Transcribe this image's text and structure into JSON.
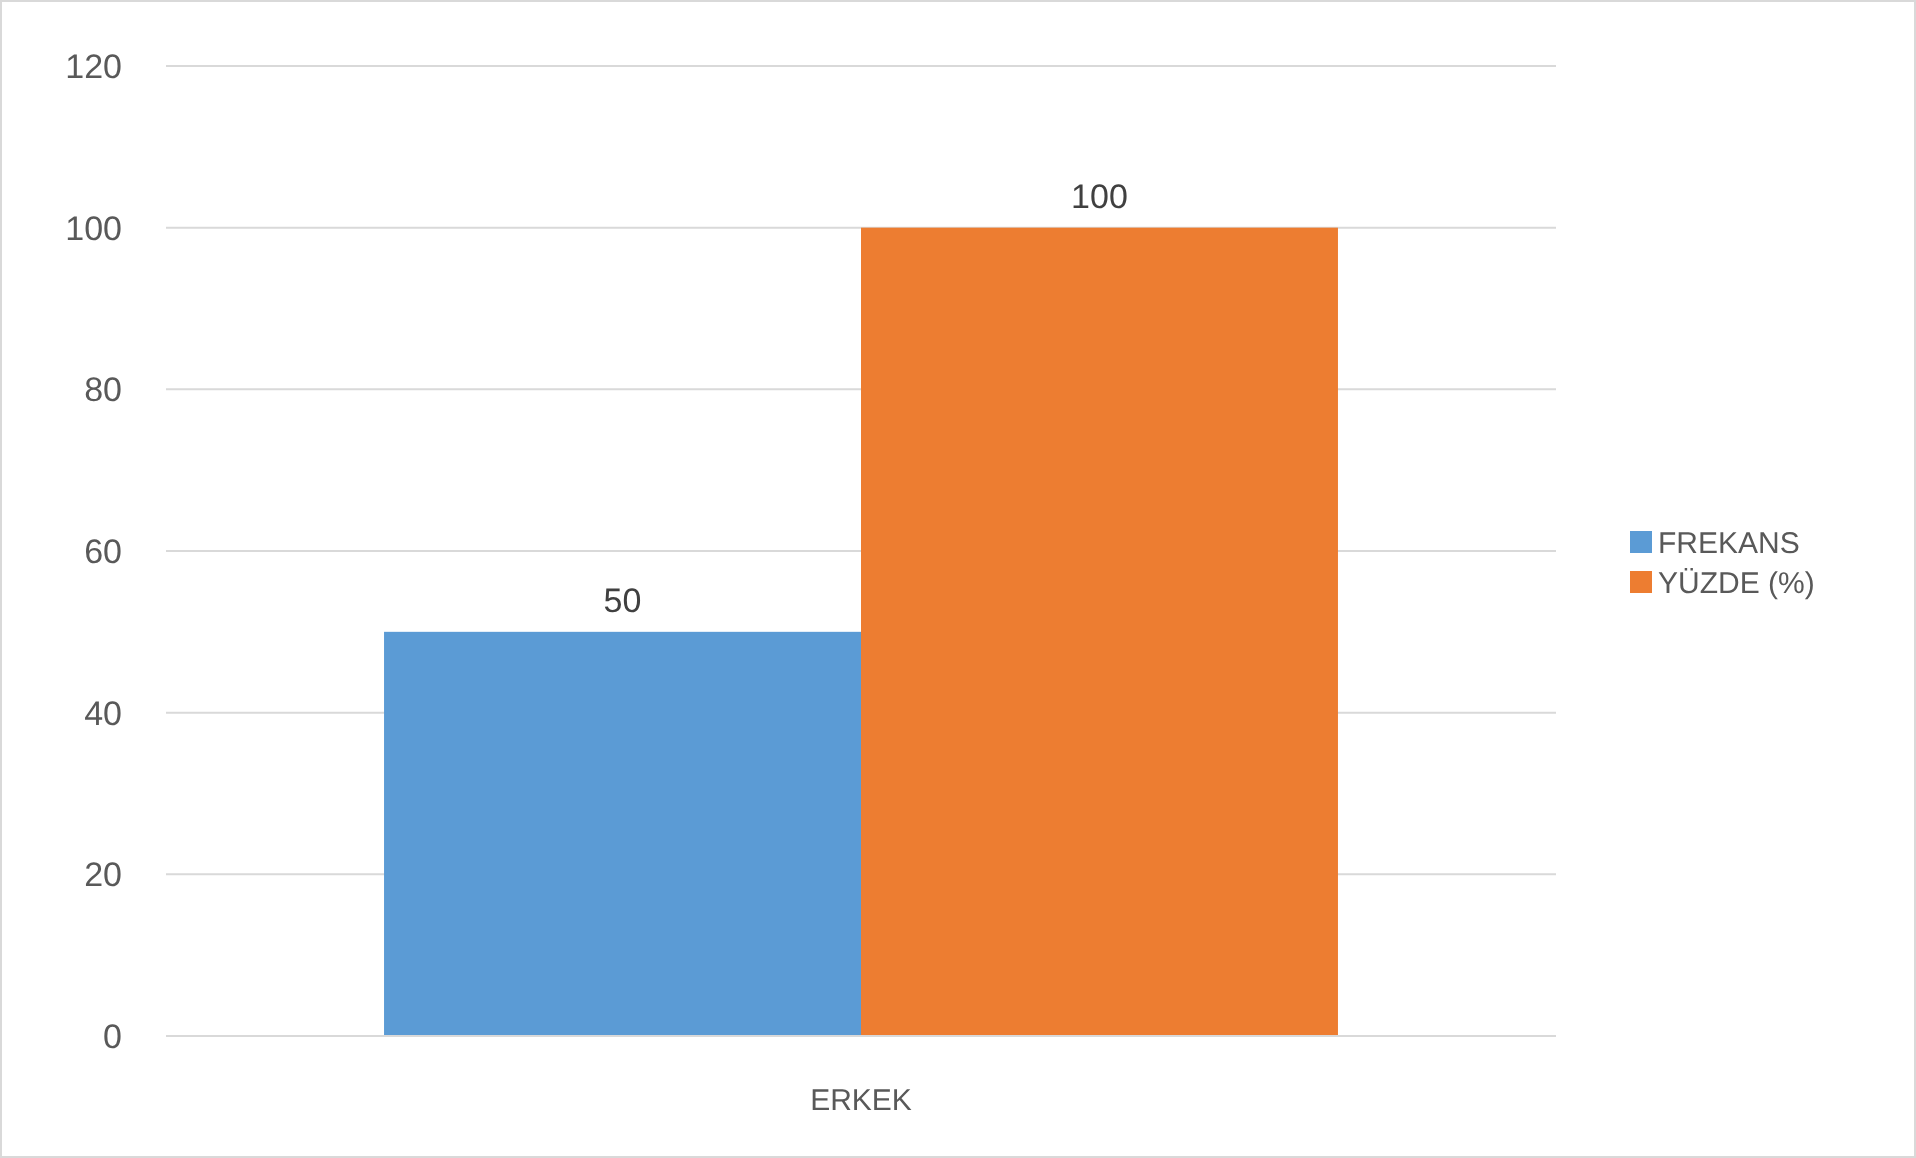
{
  "chart_data": {
    "type": "bar",
    "categories": [
      "ERKEK"
    ],
    "series": [
      {
        "name": "FREKANS",
        "color": "#5b9bd5",
        "values": [
          50
        ]
      },
      {
        "name": "YÜZDE (%)",
        "color": "#ed7d31",
        "values": [
          100
        ]
      }
    ],
    "ylim": [
      0,
      120
    ],
    "yticks": [
      0,
      20,
      40,
      60,
      80,
      100,
      120
    ],
    "grid": "y",
    "legend": "right",
    "data_labels": true
  }
}
